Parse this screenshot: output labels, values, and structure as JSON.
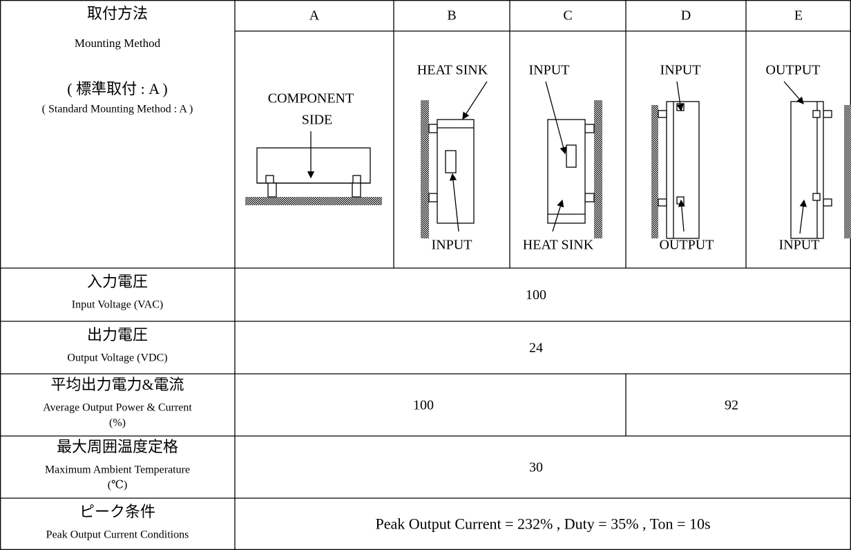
{
  "mounting": {
    "label_ja": "取付方法",
    "label_en": "Mounting Method",
    "standard_ja": "( 標準取付 : A )",
    "standard_en": "( Standard Mounting Method : A )",
    "columns": [
      {
        "letter": "A",
        "labels": [
          "COMPONENT",
          "SIDE"
        ]
      },
      {
        "letter": "B",
        "labels": [
          "HEAT SINK",
          "INPUT"
        ]
      },
      {
        "letter": "C",
        "labels": [
          "INPUT",
          "HEAT SINK"
        ]
      },
      {
        "letter": "D",
        "labels": [
          "INPUT",
          "OUTPUT"
        ]
      },
      {
        "letter": "E",
        "labels": [
          "OUTPUT",
          "INPUT"
        ]
      }
    ]
  },
  "rows": [
    {
      "label_ja": "入力電圧",
      "label_en": [
        "Input Voltage (VAC)"
      ],
      "cells": [
        100
      ]
    },
    {
      "label_ja": "出力電圧",
      "label_en": [
        "Output Voltage (VDC)"
      ],
      "cells": [
        24
      ]
    },
    {
      "label_ja": "平均出力電力&電流",
      "label_en": [
        "Average Output Power & Current",
        "(%)"
      ],
      "cells": [
        100,
        92
      ]
    },
    {
      "label_ja": "最大周囲温度定格",
      "label_en": [
        "Maximum Ambient Temperature",
        "(℃)"
      ],
      "cells": [
        30
      ]
    },
    {
      "label_ja": "ピーク条件",
      "label_en": [
        "Peak Output Current Conditions"
      ],
      "cells": [
        "Peak Output Current = 232% , Duty = 35% , Ton = 10s"
      ]
    }
  ]
}
